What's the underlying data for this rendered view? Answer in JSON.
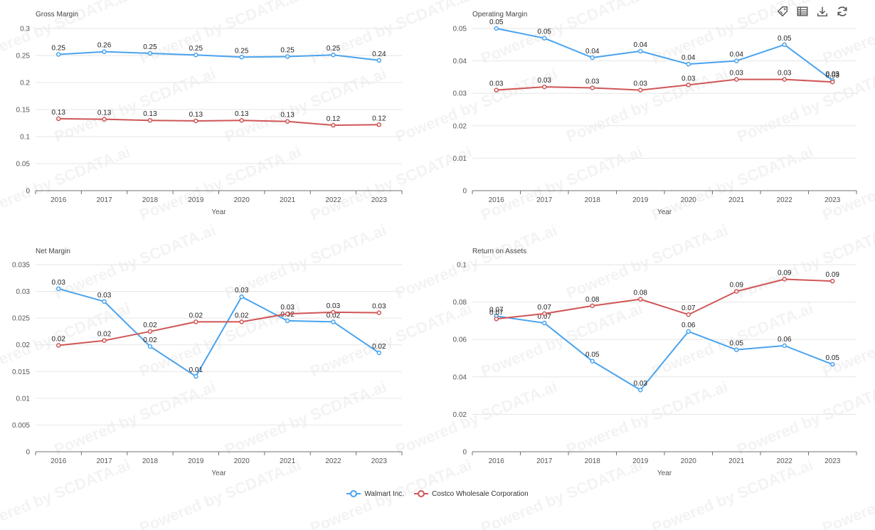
{
  "colors": {
    "walmart": "#4aa3ee",
    "costco": "#d05656"
  },
  "watermark": "Powered by SCDATA.ai",
  "toolbar": [
    "tag-icon",
    "table-icon",
    "download-icon",
    "refresh-icon"
  ],
  "legend": [
    {
      "name": "Walmart Inc.",
      "color": "#4aa3ee"
    },
    {
      "name": "Costco Wholesale Corporation",
      "color": "#d05656"
    }
  ],
  "chart_data": [
    {
      "type": "line",
      "title": "Gross Margin",
      "xlabel": "Year",
      "ylabel": "",
      "categories": [
        "2016",
        "2017",
        "2018",
        "2019",
        "2020",
        "2021",
        "2022",
        "2023"
      ],
      "ylim": [
        0,
        0.3
      ],
      "yticks": [
        "0",
        "0.05",
        "0.1",
        "0.15",
        "0.2",
        "0.25",
        "0.3"
      ],
      "grid": true,
      "series": [
        {
          "name": "Walmart Inc.",
          "color": "#4aa3ee",
          "values": [
            0.252,
            0.257,
            0.254,
            0.251,
            0.247,
            0.248,
            0.251,
            0.241
          ],
          "labels": [
            "0.25",
            "0.26",
            "0.25",
            "0.25",
            "0.25",
            "0.25",
            "0.25",
            "0.24"
          ]
        },
        {
          "name": "Costco Wholesale Corporation",
          "color": "#d05656",
          "values": [
            0.133,
            0.132,
            0.13,
            0.129,
            0.13,
            0.128,
            0.121,
            0.122
          ],
          "labels": [
            "0.13",
            "0.13",
            "0.13",
            "0.13",
            "0.13",
            "0.13",
            "0.12",
            "0.12"
          ]
        }
      ]
    },
    {
      "type": "line",
      "title": "Operating Margin",
      "xlabel": "Year",
      "ylabel": "",
      "categories": [
        "2016",
        "2017",
        "2018",
        "2019",
        "2020",
        "2021",
        "2022",
        "2023"
      ],
      "ylim": [
        0,
        0.05
      ],
      "yticks": [
        "0",
        "0.01",
        "0.02",
        "0.03",
        "0.04",
        "0.05"
      ],
      "grid": true,
      "series": [
        {
          "name": "Walmart Inc.",
          "color": "#4aa3ee",
          "values": [
            0.05,
            0.047,
            0.041,
            0.043,
            0.039,
            0.04,
            0.045,
            0.034
          ],
          "labels": [
            "0.05",
            "0.05",
            "0.04",
            "0.04",
            "0.04",
            "0.04",
            "0.05",
            "0.03"
          ]
        },
        {
          "name": "Costco Wholesale Corporation",
          "color": "#d05656",
          "values": [
            0.031,
            0.032,
            0.0317,
            0.031,
            0.0326,
            0.0343,
            0.0343,
            0.0335
          ],
          "labels": [
            "0.03",
            "0.03",
            "0.03",
            "0.03",
            "0.03",
            "0.03",
            "0.03",
            "0.03"
          ]
        }
      ]
    },
    {
      "type": "line",
      "title": "Net Margin",
      "xlabel": "Year",
      "ylabel": "",
      "categories": [
        "2016",
        "2017",
        "2018",
        "2019",
        "2020",
        "2021",
        "2022",
        "2023"
      ],
      "ylim": [
        0,
        0.035
      ],
      "yticks": [
        "0",
        "0.005",
        "0.01",
        "0.015",
        "0.02",
        "0.025",
        "0.03",
        "0.035"
      ],
      "grid": true,
      "series": [
        {
          "name": "Walmart Inc.",
          "color": "#4aa3ee",
          "values": [
            0.0305,
            0.0281,
            0.0197,
            0.0141,
            0.029,
            0.0245,
            0.0243,
            0.0185
          ],
          "labels": [
            "0.03",
            "0.03",
            "0.02",
            "0.01",
            "0.03",
            "0.02",
            "0.02",
            "0.02"
          ]
        },
        {
          "name": "Costco Wholesale Corporation",
          "color": "#d05656",
          "values": [
            0.0199,
            0.0208,
            0.0225,
            0.0243,
            0.0243,
            0.0258,
            0.0261,
            0.026
          ],
          "labels": [
            "0.02",
            "0.02",
            "0.02",
            "0.02",
            "0.02",
            "0.03",
            "0.03",
            "0.03"
          ]
        }
      ]
    },
    {
      "type": "line",
      "title": "Return on Assets",
      "xlabel": "Year",
      "ylabel": "",
      "categories": [
        "2016",
        "2017",
        "2018",
        "2019",
        "2020",
        "2021",
        "2022",
        "2023"
      ],
      "ylim": [
        0,
        0.1
      ],
      "yticks": [
        "0",
        "0.02",
        "0.04",
        "0.06",
        "0.08",
        "0.1"
      ],
      "grid": true,
      "series": [
        {
          "name": "Walmart Inc.",
          "color": "#4aa3ee",
          "values": [
            0.0725,
            0.0688,
            0.0484,
            0.033,
            0.0643,
            0.0545,
            0.0567,
            0.0467
          ],
          "labels": [
            "0.07",
            "0.07",
            "0.05",
            "0.03",
            "0.06",
            "0.05",
            "0.06",
            "0.05"
          ]
        },
        {
          "name": "Costco Wholesale Corporation",
          "color": "#d05656",
          "values": [
            0.071,
            0.0738,
            0.078,
            0.0815,
            0.0733,
            0.0857,
            0.0922,
            0.0912
          ],
          "labels": [
            "0.07",
            "0.07",
            "0.08",
            "0.08",
            "0.07",
            "0.09",
            "0.09",
            "0.09"
          ]
        }
      ]
    }
  ]
}
